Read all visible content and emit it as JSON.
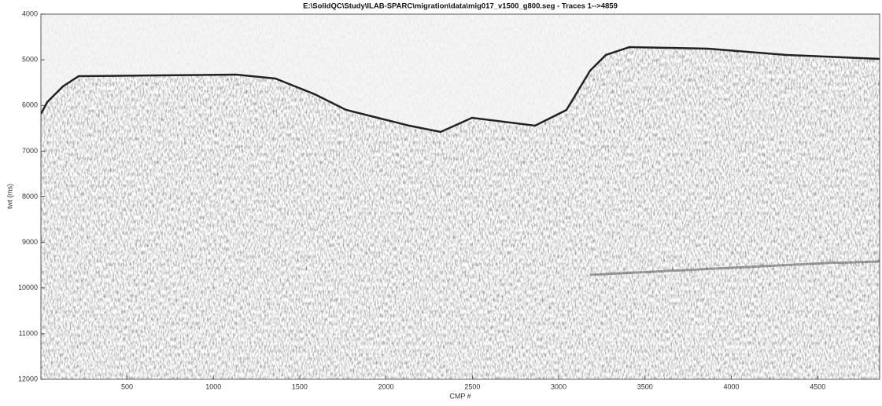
{
  "chart_data": {
    "type": "image",
    "title": "E:\\SolidQC\\Study\\ILAB-SPARC\\migration\\data\\mig017_v1500_g800.seg - Traces 1-->4859",
    "xlabel": "CMP #",
    "ylabel": "twt (ms)",
    "xlim": [
      1,
      4859
    ],
    "ylim": [
      4000,
      12000
    ],
    "y_reversed": true,
    "xticks": [
      500,
      1000,
      1500,
      2000,
      2500,
      3000,
      3500,
      4000,
      4500
    ],
    "yticks": [
      4000,
      5000,
      6000,
      7000,
      8000,
      9000,
      10000,
      11000,
      12000
    ]
  }
}
